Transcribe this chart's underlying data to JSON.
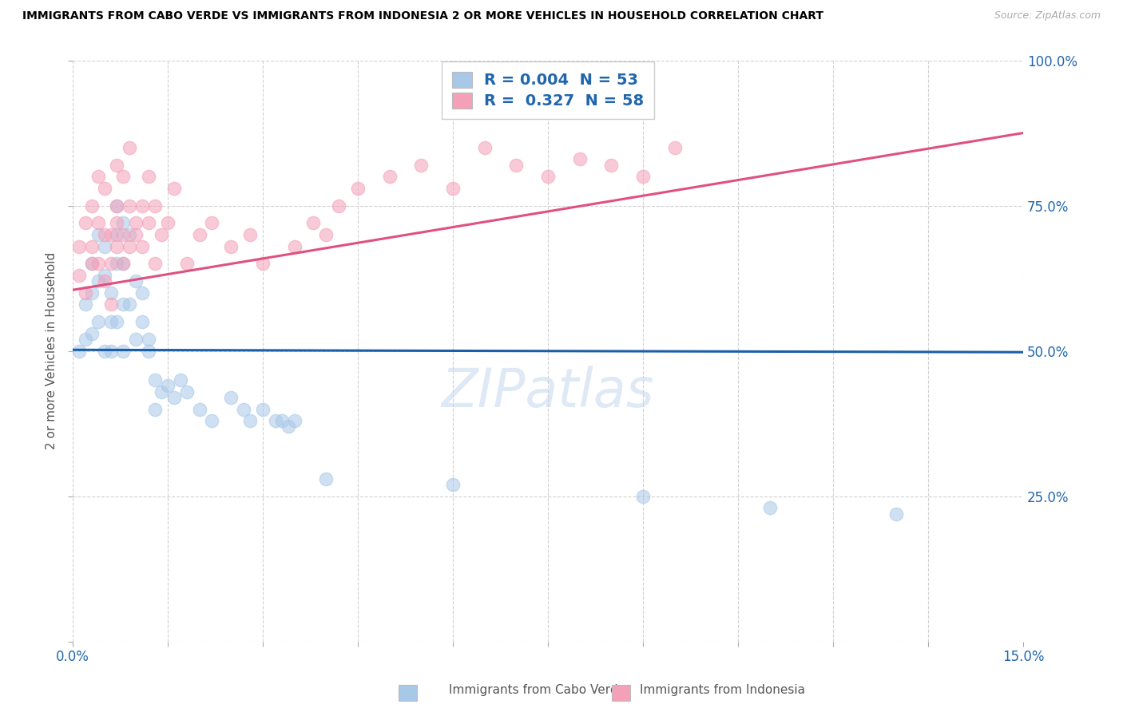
{
  "title": "IMMIGRANTS FROM CABO VERDE VS IMMIGRANTS FROM INDONESIA 2 OR MORE VEHICLES IN HOUSEHOLD CORRELATION CHART",
  "source": "Source: ZipAtlas.com",
  "ylabel": "2 or more Vehicles in Household",
  "xlim": [
    0.0,
    0.15
  ],
  "ylim": [
    0.0,
    1.0
  ],
  "blue_color": "#a8c8e8",
  "pink_color": "#f4a0b8",
  "blue_line_color": "#1a5fa8",
  "pink_line_color": "#e05080",
  "legend_R_blue": "0.004",
  "legend_N_blue": "53",
  "legend_R_pink": "0.327",
  "legend_N_pink": "58",
  "watermark": "ZIPatlas",
  "cabo_verde_x": [
    0.001,
    0.002,
    0.002,
    0.003,
    0.003,
    0.003,
    0.004,
    0.004,
    0.004,
    0.005,
    0.005,
    0.005,
    0.006,
    0.006,
    0.006,
    0.007,
    0.007,
    0.007,
    0.007,
    0.008,
    0.008,
    0.008,
    0.008,
    0.009,
    0.009,
    0.01,
    0.01,
    0.011,
    0.011,
    0.012,
    0.012,
    0.013,
    0.013,
    0.014,
    0.015,
    0.016,
    0.017,
    0.018,
    0.02,
    0.022,
    0.025,
    0.027,
    0.028,
    0.03,
    0.032,
    0.033,
    0.034,
    0.035,
    0.04,
    0.06,
    0.09,
    0.11,
    0.13
  ],
  "cabo_verde_y": [
    0.5,
    0.52,
    0.58,
    0.53,
    0.6,
    0.65,
    0.55,
    0.62,
    0.7,
    0.63,
    0.5,
    0.68,
    0.55,
    0.6,
    0.5,
    0.65,
    0.7,
    0.75,
    0.55,
    0.58,
    0.65,
    0.5,
    0.72,
    0.58,
    0.7,
    0.52,
    0.62,
    0.55,
    0.6,
    0.5,
    0.52,
    0.45,
    0.4,
    0.43,
    0.44,
    0.42,
    0.45,
    0.43,
    0.4,
    0.38,
    0.42,
    0.4,
    0.38,
    0.4,
    0.38,
    0.38,
    0.37,
    0.38,
    0.28,
    0.27,
    0.25,
    0.23,
    0.22
  ],
  "indonesia_x": [
    0.001,
    0.001,
    0.002,
    0.002,
    0.003,
    0.003,
    0.003,
    0.004,
    0.004,
    0.004,
    0.005,
    0.005,
    0.005,
    0.006,
    0.006,
    0.006,
    0.007,
    0.007,
    0.007,
    0.007,
    0.008,
    0.008,
    0.008,
    0.009,
    0.009,
    0.009,
    0.01,
    0.01,
    0.011,
    0.011,
    0.012,
    0.012,
    0.013,
    0.013,
    0.014,
    0.015,
    0.016,
    0.018,
    0.02,
    0.022,
    0.025,
    0.028,
    0.03,
    0.035,
    0.038,
    0.04,
    0.042,
    0.045,
    0.05,
    0.055,
    0.06,
    0.065,
    0.07,
    0.075,
    0.08,
    0.085,
    0.09,
    0.095
  ],
  "indonesia_y": [
    0.63,
    0.68,
    0.6,
    0.72,
    0.65,
    0.75,
    0.68,
    0.72,
    0.65,
    0.8,
    0.7,
    0.62,
    0.78,
    0.65,
    0.7,
    0.58,
    0.72,
    0.68,
    0.75,
    0.82,
    0.65,
    0.7,
    0.8,
    0.68,
    0.75,
    0.85,
    0.7,
    0.72,
    0.68,
    0.75,
    0.72,
    0.8,
    0.65,
    0.75,
    0.7,
    0.72,
    0.78,
    0.65,
    0.7,
    0.72,
    0.68,
    0.7,
    0.65,
    0.68,
    0.72,
    0.7,
    0.75,
    0.78,
    0.8,
    0.82,
    0.78,
    0.85,
    0.82,
    0.8,
    0.83,
    0.82,
    0.8,
    0.85
  ],
  "blue_trendline_x": [
    0.0,
    0.15
  ],
  "blue_trendline_y": [
    0.502,
    0.498
  ],
  "pink_trendline_x": [
    0.0,
    0.15
  ],
  "pink_trendline_y": [
    0.605,
    0.875
  ]
}
